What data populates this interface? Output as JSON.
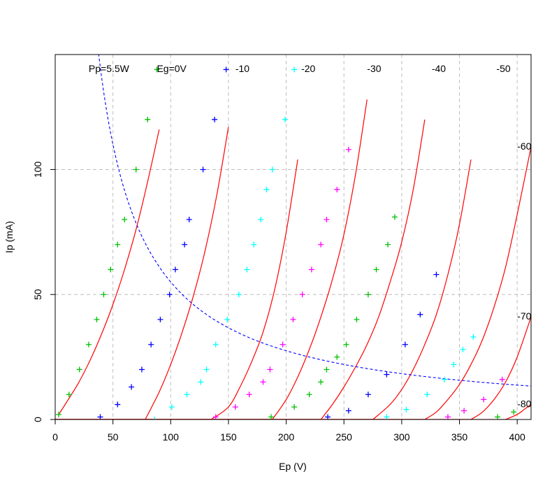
{
  "chart_data": {
    "type": "scatter",
    "title": "",
    "xlabel": "Ep (V)",
    "ylabel": "Ip (mA)",
    "xlim": [
      0,
      412
    ],
    "ylim": [
      0,
      146
    ],
    "x_ticks": [
      0,
      50,
      100,
      150,
      200,
      250,
      300,
      350,
      400
    ],
    "y_ticks": [
      0,
      50,
      100
    ],
    "grid": "dashed-gray",
    "colors": {
      "curve": "#ff0000",
      "power": "#0000ff",
      "series": [
        "#00c000",
        "#0000ff",
        "#00ffff",
        "#ff00ff"
      ]
    },
    "annotations": [
      {
        "text": "Pp=5.5W",
        "x": 29,
        "y": 140
      },
      {
        "text": "Eg=0V",
        "x": 88,
        "y": 140
      },
      {
        "text": "-10",
        "x": 156,
        "y": 140
      },
      {
        "text": "-20",
        "x": 213,
        "y": 140
      },
      {
        "text": "-30",
        "x": 270,
        "y": 140
      },
      {
        "text": "-40",
        "x": 326,
        "y": 140
      },
      {
        "text": "-50",
        "x": 382,
        "y": 140
      },
      {
        "text": "-60",
        "x": 400,
        "y": 109
      },
      {
        "text": "-70",
        "x": 400,
        "y": 41
      },
      {
        "text": "-80",
        "x": 400,
        "y": 6
      }
    ],
    "power_curve": {
      "watts": 5.5
    },
    "curves": [
      {
        "grid": 0,
        "x": [
          3,
          10,
          20,
          30,
          40,
          50,
          60,
          70,
          80,
          90
        ],
        "y": [
          2,
          7,
          14.5,
          23.5,
          34,
          46,
          60,
          76,
          95,
          116
        ]
      },
      {
        "grid": -10,
        "x": [
          78,
          90,
          100,
          110,
          120,
          130,
          140,
          150
        ],
        "y": [
          0,
          11,
          22,
          35,
          50,
          68,
          90,
          117
        ]
      },
      {
        "grid": -20,
        "x": [
          135,
          150,
          160,
          170,
          180,
          190,
          200,
          210
        ],
        "y": [
          0,
          5,
          13,
          23,
          35,
          52,
          75,
          104
        ]
      },
      {
        "grid": -30,
        "x": [
          188,
          200,
          210,
          220,
          230,
          240,
          250,
          260,
          270
        ],
        "y": [
          0,
          8,
          17,
          28,
          41,
          56,
          74,
          98,
          128
        ]
      },
      {
        "grid": -40,
        "x": [
          230,
          240,
          250,
          260,
          270,
          280,
          290,
          300,
          310,
          320
        ],
        "y": [
          0,
          6,
          13,
          21,
          30,
          41,
          55,
          71,
          92,
          120
        ]
      },
      {
        "grid": -50,
        "x": [
          275,
          290,
          300,
          310,
          320,
          330,
          340,
          350,
          360
        ],
        "y": [
          0,
          6,
          12,
          20,
          30,
          42,
          58,
          78,
          104
        ]
      },
      {
        "grid": -60,
        "x": [
          320,
          330,
          340,
          350,
          360,
          370,
          380,
          390,
          400,
          412
        ],
        "y": [
          0,
          3,
          8,
          14,
          22,
          32,
          45,
          61,
          82,
          109
        ]
      },
      {
        "grid": -70,
        "x": [
          360,
          370,
          380,
          390,
          400,
          412
        ],
        "y": [
          0,
          3,
          8,
          15,
          25,
          41
        ]
      },
      {
        "grid": -80,
        "x": [
          390,
          400,
          406,
          412
        ],
        "y": [
          0,
          2,
          4,
          6
        ]
      }
    ],
    "series": [
      {
        "grid": 0,
        "color": "green",
        "x": [
          3,
          12,
          21,
          29,
          36,
          42,
          48,
          54,
          60,
          70,
          80,
          88
        ],
        "y": [
          2,
          10,
          20,
          30,
          40,
          50,
          60,
          70,
          80,
          100,
          120,
          140
        ]
      },
      {
        "grid": -10,
        "color": "blue",
        "x": [
          39,
          54,
          66,
          75,
          83,
          91,
          99,
          104,
          112,
          116,
          128,
          138,
          148
        ],
        "y": [
          1,
          6,
          13,
          20,
          30,
          40,
          50,
          60,
          70,
          80,
          100,
          120,
          140
        ]
      },
      {
        "grid": -20,
        "color": "cyan",
        "x": [
          86,
          101,
          114,
          126,
          131,
          139,
          149,
          159,
          166,
          172,
          178,
          183,
          188,
          199,
          207
        ],
        "y": [
          0,
          5,
          10,
          15,
          20,
          30,
          40,
          50,
          60,
          70,
          80,
          92,
          100,
          120,
          140
        ]
      },
      {
        "grid": -30,
        "color": "magenta",
        "x": [
          139,
          156,
          168,
          180,
          186,
          197,
          206,
          214,
          222,
          230,
          235,
          244,
          254
        ],
        "y": [
          1,
          5,
          10,
          15,
          20,
          30,
          40,
          50,
          60,
          70,
          80,
          92,
          108
        ]
      },
      {
        "grid": -40,
        "color": "green",
        "x": [
          187,
          207,
          220,
          230,
          235,
          244,
          252,
          261,
          271,
          278,
          288,
          294
        ],
        "y": [
          1,
          5,
          10,
          15,
          20,
          25,
          30,
          40,
          50,
          60,
          70,
          81
        ]
      },
      {
        "grid": -50,
        "color": "blue",
        "x": [
          236,
          254,
          271,
          287,
          303,
          316,
          330
        ],
        "y": [
          1,
          3.5,
          10,
          18,
          30,
          42,
          58
        ]
      },
      {
        "grid": -60,
        "color": "cyan",
        "x": [
          287,
          304,
          322,
          337,
          345,
          353,
          362
        ],
        "y": [
          1,
          4,
          10,
          16,
          22,
          28,
          33
        ]
      },
      {
        "grid": -70,
        "color": "magenta",
        "x": [
          340,
          354,
          371,
          387
        ],
        "y": [
          1,
          3.5,
          8,
          16
        ]
      },
      {
        "grid": -80,
        "color": "green",
        "x": [
          383,
          397
        ],
        "y": [
          1,
          3
        ]
      }
    ]
  }
}
